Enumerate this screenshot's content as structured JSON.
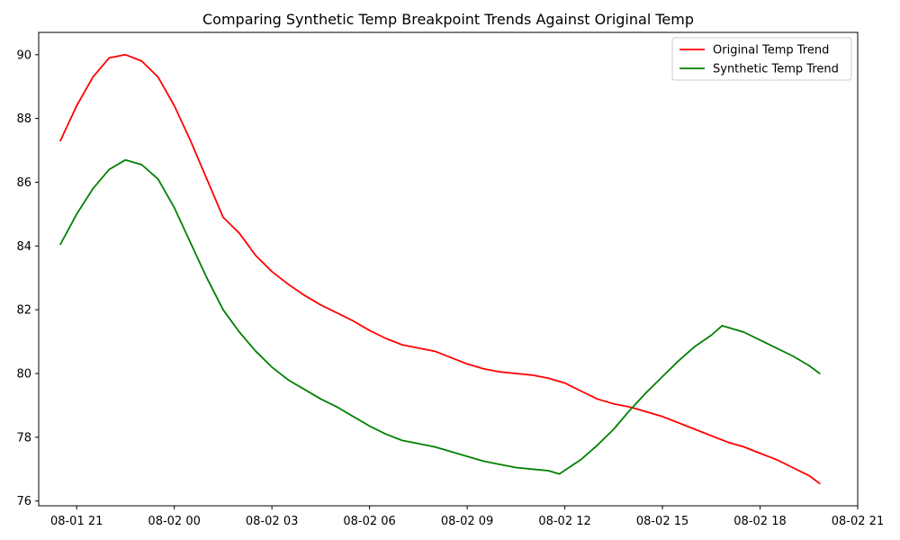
{
  "chart_data": {
    "type": "line",
    "title": "Comparing Synthetic Temp Breakpoint Trends Against Original Temp",
    "xlabel": "",
    "ylabel": "",
    "x_unit": "datetime",
    "xlim": [
      "2023-08-01 19:50",
      "2023-08-02 21:00"
    ],
    "ylim": [
      75.85,
      90.7
    ],
    "x_ticks": [
      {
        "value": "2023-08-01 21:00",
        "label": "08-01 21"
      },
      {
        "value": "2023-08-02 00:00",
        "label": "08-02 00"
      },
      {
        "value": "2023-08-02 03:00",
        "label": "08-02 03"
      },
      {
        "value": "2023-08-02 06:00",
        "label": "08-02 06"
      },
      {
        "value": "2023-08-02 09:00",
        "label": "08-02 09"
      },
      {
        "value": "2023-08-02 12:00",
        "label": "08-02 12"
      },
      {
        "value": "2023-08-02 15:00",
        "label": "08-02 15"
      },
      {
        "value": "2023-08-02 18:00",
        "label": "08-02 18"
      },
      {
        "value": "2023-08-02 21:00",
        "label": "08-02 21"
      }
    ],
    "y_ticks": [
      {
        "value": 76,
        "label": "76"
      },
      {
        "value": 78,
        "label": "78"
      },
      {
        "value": 80,
        "label": "80"
      },
      {
        "value": 82,
        "label": "82"
      },
      {
        "value": 84,
        "label": "84"
      },
      {
        "value": 86,
        "label": "86"
      },
      {
        "value": 88,
        "label": "88"
      },
      {
        "value": 90,
        "label": "90"
      }
    ],
    "grid": false,
    "legend": "top-right",
    "series": [
      {
        "name": "Original Temp Trend",
        "color": "#ff0000",
        "points": [
          [
            "2023-08-01 20:30",
            87.3
          ],
          [
            "2023-08-01 21:00",
            88.4
          ],
          [
            "2023-08-01 21:30",
            89.3
          ],
          [
            "2023-08-01 22:00",
            89.9
          ],
          [
            "2023-08-01 22:30",
            90.0
          ],
          [
            "2023-08-01 23:00",
            89.8
          ],
          [
            "2023-08-01 23:30",
            89.3
          ],
          [
            "2023-08-02 00:00",
            88.4
          ],
          [
            "2023-08-02 00:30",
            87.3
          ],
          [
            "2023-08-02 01:00",
            86.1
          ],
          [
            "2023-08-02 01:30",
            84.9
          ],
          [
            "2023-08-02 02:00",
            84.4
          ],
          [
            "2023-08-02 02:30",
            83.7
          ],
          [
            "2023-08-02 03:00",
            83.2
          ],
          [
            "2023-08-02 03:30",
            82.8
          ],
          [
            "2023-08-02 04:00",
            82.45
          ],
          [
            "2023-08-02 04:30",
            82.15
          ],
          [
            "2023-08-02 05:00",
            81.9
          ],
          [
            "2023-08-02 05:30",
            81.65
          ],
          [
            "2023-08-02 06:00",
            81.35
          ],
          [
            "2023-08-02 06:30",
            81.1
          ],
          [
            "2023-08-02 07:00",
            80.9
          ],
          [
            "2023-08-02 07:30",
            80.8
          ],
          [
            "2023-08-02 08:00",
            80.7
          ],
          [
            "2023-08-02 08:30",
            80.5
          ],
          [
            "2023-08-02 09:00",
            80.3
          ],
          [
            "2023-08-02 09:30",
            80.15
          ],
          [
            "2023-08-02 10:00",
            80.05
          ],
          [
            "2023-08-02 10:30",
            80.0
          ],
          [
            "2023-08-02 11:00",
            79.95
          ],
          [
            "2023-08-02 11:30",
            79.85
          ],
          [
            "2023-08-02 12:00",
            79.7
          ],
          [
            "2023-08-02 12:30",
            79.45
          ],
          [
            "2023-08-02 13:00",
            79.2
          ],
          [
            "2023-08-02 13:30",
            79.05
          ],
          [
            "2023-08-02 14:00",
            78.95
          ],
          [
            "2023-08-02 14:30",
            78.8
          ],
          [
            "2023-08-02 15:00",
            78.65
          ],
          [
            "2023-08-02 15:30",
            78.45
          ],
          [
            "2023-08-02 16:00",
            78.25
          ],
          [
            "2023-08-02 16:30",
            78.05
          ],
          [
            "2023-08-02 17:00",
            77.85
          ],
          [
            "2023-08-02 17:30",
            77.7
          ],
          [
            "2023-08-02 18:00",
            77.5
          ],
          [
            "2023-08-02 18:30",
            77.3
          ],
          [
            "2023-08-02 19:00",
            77.05
          ],
          [
            "2023-08-02 19:30",
            76.8
          ],
          [
            "2023-08-02 19:50",
            76.55
          ]
        ]
      },
      {
        "name": "Synthetic Temp Trend",
        "color": "#008000",
        "points": [
          [
            "2023-08-01 20:30",
            84.05
          ],
          [
            "2023-08-01 21:00",
            85.0
          ],
          [
            "2023-08-01 21:30",
            85.8
          ],
          [
            "2023-08-01 22:00",
            86.4
          ],
          [
            "2023-08-01 22:30",
            86.7
          ],
          [
            "2023-08-01 23:00",
            86.55
          ],
          [
            "2023-08-01 23:30",
            86.1
          ],
          [
            "2023-08-02 00:00",
            85.2
          ],
          [
            "2023-08-02 00:30",
            84.1
          ],
          [
            "2023-08-02 01:00",
            83.0
          ],
          [
            "2023-08-02 01:30",
            82.0
          ],
          [
            "2023-08-02 02:00",
            81.3
          ],
          [
            "2023-08-02 02:30",
            80.7
          ],
          [
            "2023-08-02 03:00",
            80.2
          ],
          [
            "2023-08-02 03:30",
            79.8
          ],
          [
            "2023-08-02 04:00",
            79.5
          ],
          [
            "2023-08-02 04:30",
            79.2
          ],
          [
            "2023-08-02 05:00",
            78.95
          ],
          [
            "2023-08-02 05:30",
            78.65
          ],
          [
            "2023-08-02 06:00",
            78.35
          ],
          [
            "2023-08-02 06:30",
            78.1
          ],
          [
            "2023-08-02 07:00",
            77.9
          ],
          [
            "2023-08-02 07:30",
            77.8
          ],
          [
            "2023-08-02 08:00",
            77.7
          ],
          [
            "2023-08-02 08:30",
            77.55
          ],
          [
            "2023-08-02 09:00",
            77.4
          ],
          [
            "2023-08-02 09:30",
            77.25
          ],
          [
            "2023-08-02 10:00",
            77.15
          ],
          [
            "2023-08-02 10:30",
            77.05
          ],
          [
            "2023-08-02 11:00",
            77.0
          ],
          [
            "2023-08-02 11:30",
            76.95
          ],
          [
            "2023-08-02 11:50",
            76.85
          ],
          [
            "2023-08-02 12:30",
            77.3
          ],
          [
            "2023-08-02 13:00",
            77.75
          ],
          [
            "2023-08-02 13:30",
            78.25
          ],
          [
            "2023-08-02 14:00",
            78.85
          ],
          [
            "2023-08-02 14:30",
            79.4
          ],
          [
            "2023-08-02 15:00",
            79.9
          ],
          [
            "2023-08-02 15:30",
            80.4
          ],
          [
            "2023-08-02 16:00",
            80.85
          ],
          [
            "2023-08-02 16:30",
            81.2
          ],
          [
            "2023-08-02 16:50",
            81.5
          ],
          [
            "2023-08-02 17:30",
            81.3
          ],
          [
            "2023-08-02 18:00",
            81.05
          ],
          [
            "2023-08-02 18:30",
            80.8
          ],
          [
            "2023-08-02 19:00",
            80.55
          ],
          [
            "2023-08-02 19:30",
            80.25
          ],
          [
            "2023-08-02 19:50",
            80.0
          ]
        ]
      }
    ]
  }
}
